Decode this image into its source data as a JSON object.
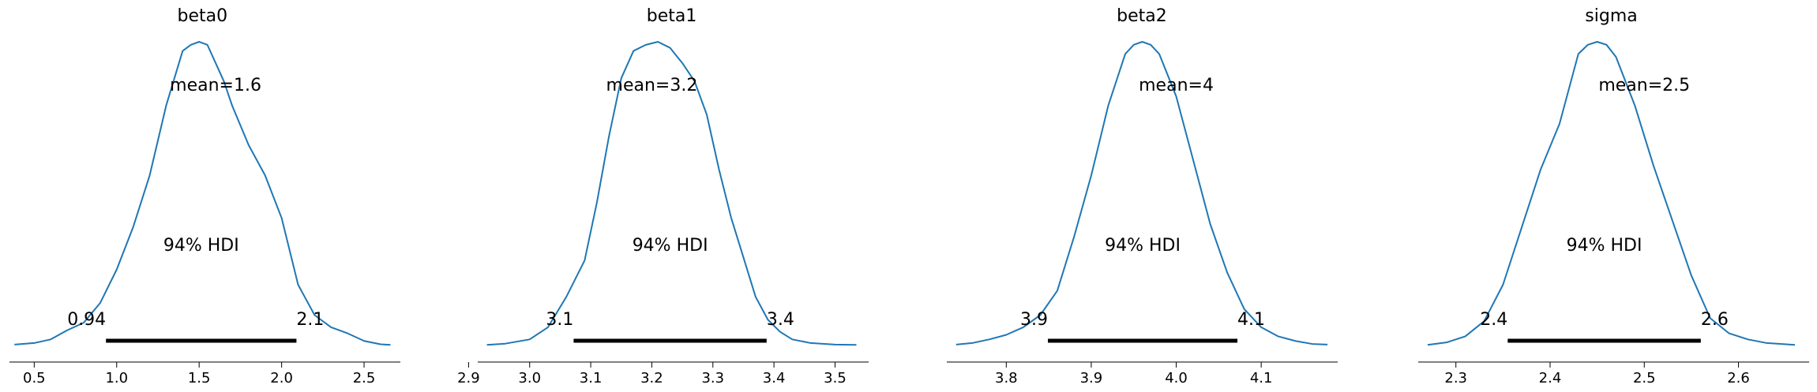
{
  "chart_data": [
    {
      "type": "area",
      "title": "beta0",
      "mean_label": "mean=1.6",
      "hdi_label": "94% HDI",
      "hdi": {
        "low": 0.935,
        "high": 2.09,
        "low_label": "0.94",
        "high_label": "2.1"
      },
      "xlim": [
        0.38,
        2.66
      ],
      "axis_range": [
        0.35,
        2.72
      ],
      "ticks": [
        "0.5",
        "1.0",
        "1.5",
        "2.0",
        "2.5"
      ],
      "line_color": "#1f77b4",
      "grid": false,
      "x": [
        0.38,
        0.5,
        0.6,
        0.7,
        0.8,
        0.9,
        1.0,
        1.1,
        1.2,
        1.3,
        1.4,
        1.45,
        1.5,
        1.55,
        1.6,
        1.65,
        1.7,
        1.8,
        1.9,
        2.0,
        2.1,
        2.2,
        2.3,
        2.4,
        2.5,
        2.6,
        2.66
      ],
      "density": [
        0.003,
        0.008,
        0.02,
        0.05,
        0.075,
        0.14,
        0.25,
        0.39,
        0.56,
        0.79,
        0.97,
        0.99,
        1.0,
        0.99,
        0.93,
        0.87,
        0.79,
        0.66,
        0.56,
        0.42,
        0.2,
        0.1,
        0.06,
        0.04,
        0.015,
        0.004,
        0.002
      ]
    },
    {
      "type": "area",
      "title": "beta1",
      "mean_label": "mean=3.2",
      "hdi_label": "94% HDI",
      "hdi": {
        "low": 3.072,
        "high": 3.388,
        "low_label": "3.1",
        "high_label": "3.4"
      },
      "xlim": [
        2.93,
        3.535
      ],
      "axis_range": [
        2.915,
        3.555
      ],
      "ticks": [
        "2.9",
        "3.0",
        "3.1",
        "3.2",
        "3.3",
        "3.4",
        "3.5"
      ],
      "line_color": "#1f77b4",
      "grid": false,
      "x": [
        2.93,
        2.96,
        3.0,
        3.03,
        3.06,
        3.09,
        3.11,
        3.13,
        3.15,
        3.17,
        3.19,
        3.21,
        3.23,
        3.25,
        3.27,
        3.29,
        3.31,
        3.33,
        3.35,
        3.37,
        3.39,
        3.41,
        3.43,
        3.46,
        3.5,
        3.535
      ],
      "density": [
        0.002,
        0.006,
        0.02,
        0.06,
        0.16,
        0.28,
        0.47,
        0.69,
        0.88,
        0.97,
        0.99,
        1.0,
        0.98,
        0.93,
        0.87,
        0.76,
        0.58,
        0.42,
        0.29,
        0.16,
        0.085,
        0.045,
        0.02,
        0.008,
        0.003,
        0.002
      ]
    },
    {
      "type": "area",
      "title": "beta2",
      "mean_label": "mean=4",
      "hdi_label": "94% HDI",
      "hdi": {
        "low": 3.849,
        "high": 4.072,
        "low_label": "3.9",
        "high_label": "4.1"
      },
      "xlim": [
        3.741,
        4.178
      ],
      "axis_range": [
        3.73,
        4.19
      ],
      "ticks": [
        "3.8",
        "3.9",
        "4.0",
        "4.1"
      ],
      "line_color": "#1f77b4",
      "grid": false,
      "x": [
        3.741,
        3.76,
        3.78,
        3.8,
        3.82,
        3.84,
        3.86,
        3.88,
        3.9,
        3.92,
        3.94,
        3.95,
        3.96,
        3.97,
        3.98,
        4.0,
        4.02,
        4.04,
        4.06,
        4.08,
        4.1,
        4.12,
        4.14,
        4.16,
        4.178
      ],
      "density": [
        0.003,
        0.008,
        0.02,
        0.035,
        0.06,
        0.1,
        0.18,
        0.36,
        0.56,
        0.79,
        0.96,
        0.99,
        1.0,
        0.99,
        0.96,
        0.82,
        0.61,
        0.4,
        0.24,
        0.12,
        0.06,
        0.03,
        0.015,
        0.005,
        0.003
      ]
    },
    {
      "type": "area",
      "title": "sigma",
      "mean_label": "mean=2.5",
      "hdi_label": "94% HDI",
      "hdi": {
        "low": 2.355,
        "high": 2.56,
        "low_label": "2.4",
        "high_label": "2.6"
      },
      "xlim": [
        2.27,
        2.66
      ],
      "axis_range": [
        2.26,
        2.675
      ],
      "ticks": [
        "2.3",
        "2.4",
        "2.5",
        "2.6"
      ],
      "line_color": "#1f77b4",
      "grid": false,
      "x": [
        2.27,
        2.29,
        2.31,
        2.33,
        2.35,
        2.37,
        2.39,
        2.41,
        2.43,
        2.44,
        2.45,
        2.46,
        2.47,
        2.49,
        2.51,
        2.53,
        2.55,
        2.57,
        2.59,
        2.61,
        2.63,
        2.66
      ],
      "density": [
        0.002,
        0.01,
        0.03,
        0.08,
        0.2,
        0.39,
        0.58,
        0.73,
        0.96,
        0.99,
        1.0,
        0.99,
        0.95,
        0.79,
        0.59,
        0.41,
        0.23,
        0.09,
        0.04,
        0.02,
        0.008,
        0.002
      ]
    }
  ]
}
